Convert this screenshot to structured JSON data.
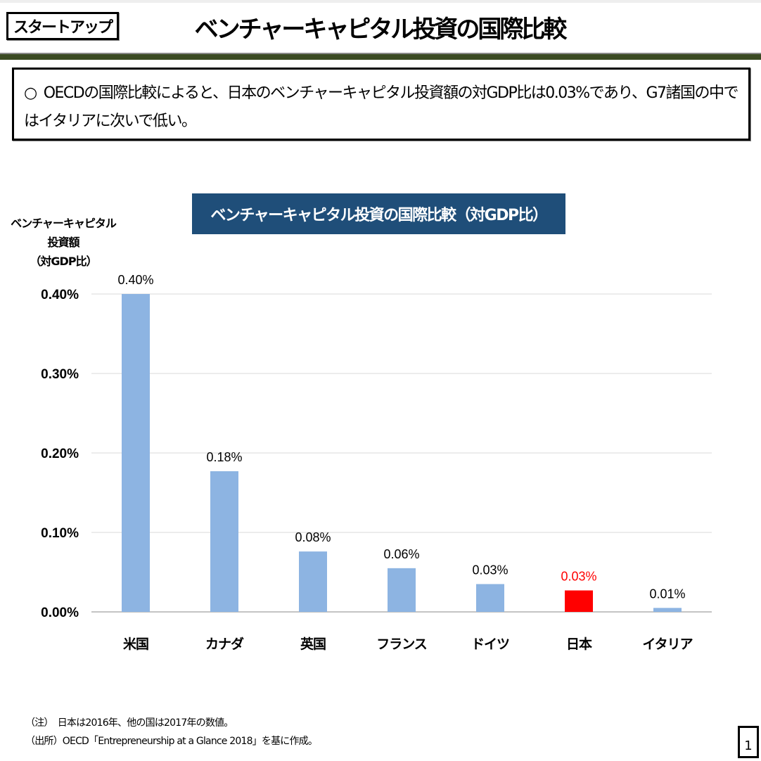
{
  "header": {
    "tag": "スタートアップ",
    "title": "ベンチャーキャピタル投資の国際比較"
  },
  "summary": {
    "bullet": "○",
    "text": "OECDの国際比較によると、日本のベンチャーキャピタル投資額の対GDP比は0.03%であり、G7諸国の中ではイタリアに次いで低い。"
  },
  "chart_data": {
    "type": "bar",
    "title": "ベンチャーキャピタル投資の国際比較（対GDP比）",
    "ylabel": [
      "ベンチャーキャピタル",
      "投資額",
      "（対GDP比）"
    ],
    "xlabel": "",
    "categories": [
      "米国",
      "カナダ",
      "英国",
      "フランス",
      "ドイツ",
      "日本",
      "イタリア"
    ],
    "values": [
      0.4,
      0.177,
      0.076,
      0.055,
      0.035,
      0.027,
      0.005
    ],
    "data_labels": [
      "0.40%",
      "0.18%",
      "0.08%",
      "0.06%",
      "0.03%",
      "0.03%",
      "0.01%"
    ],
    "yticks": [
      "0.00%",
      "0.10%",
      "0.20%",
      "0.30%",
      "0.40%"
    ],
    "ylim": [
      0,
      0.4
    ],
    "grid": true,
    "bar_color": "#8db4e2",
    "highlight_color": "#ff0000",
    "highlight_category": "日本"
  },
  "notes": {
    "note": "（注）　日本は2016年、他の国は2017年の数値。",
    "source": "（出所）OECD「Entrepreneurship at a Glance 2018」を基に作成。"
  },
  "page_number": "1"
}
